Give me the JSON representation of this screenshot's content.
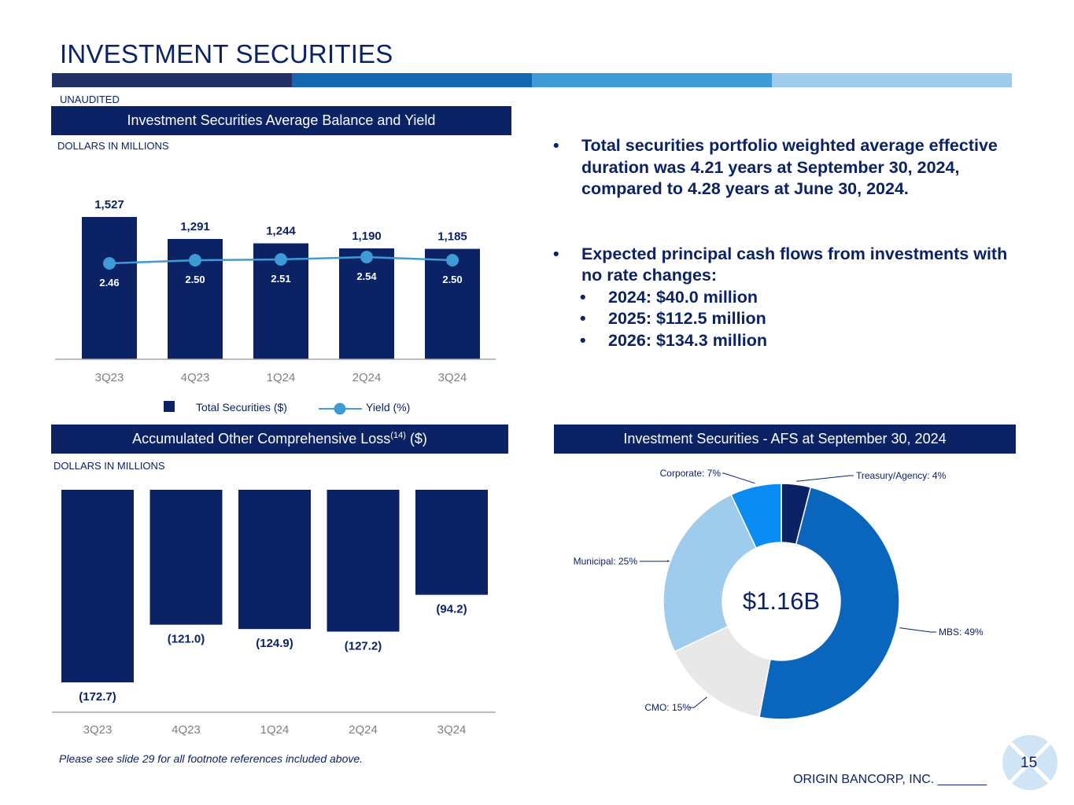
{
  "page": {
    "title": "INVESTMENT SECURITIES",
    "unaudited": "UNAUDITED",
    "footnote": "Please see slide 29 for all footnote references included above.",
    "company": "ORIGIN BANCORP, INC. _______",
    "page_number": "15"
  },
  "colors": {
    "navy": "#0b2265",
    "stripe": [
      "#233065",
      "#1266b2",
      "#3f9ad8",
      "#9fcbec"
    ],
    "line": "#3f9ad8"
  },
  "balance_panel": {
    "header": "Investment Securities Average Balance and Yield",
    "units": "DOLLARS IN MILLIONS",
    "legend_bar": "Total Securities ($)",
    "legend_line": "Yield (%)"
  },
  "aoci_panel": {
    "header": "Accumulated Other Comprehensive Loss",
    "header_sup": "(14)",
    "header_suffix": " ($)",
    "units": "DOLLARS IN MILLIONS"
  },
  "afs_panel": {
    "header": "Investment Securities - AFS at September 30, 2024",
    "center_label": "$1.16B"
  },
  "bullets": [
    {
      "text": "Total securities portfolio weighted average effective duration was 4.21 years at September 30, 2024, compared to 4.28 years at June 30, 2024.",
      "sub": []
    },
    {
      "text": "Expected principal cash flows from investments with no rate changes:",
      "sub": [
        "2024: $40.0 million",
        "2025: $112.5 million",
        "2026: $134.3 million"
      ]
    }
  ],
  "chart_data": [
    {
      "type": "bar",
      "title": "Investment Securities Average Balance and Yield",
      "categories": [
        "3Q23",
        "4Q23",
        "1Q24",
        "2Q24",
        "3Q24"
      ],
      "series": [
        {
          "name": "Total Securities ($)",
          "type": "bar",
          "values": [
            1527,
            1291,
            1244,
            1190,
            1185
          ],
          "labels": [
            "1,527",
            "1,291",
            "1,244",
            "1,190",
            "1,185"
          ]
        },
        {
          "name": "Yield (%)",
          "type": "line",
          "values": [
            2.46,
            2.5,
            2.51,
            2.54,
            2.5
          ],
          "labels": [
            "2.46",
            "2.50",
            "2.51",
            "2.54",
            "2.50"
          ]
        }
      ],
      "ylabel": "DOLLARS IN MILLIONS",
      "ylim": [
        0,
        1527
      ]
    },
    {
      "type": "bar",
      "title": "Accumulated Other Comprehensive Loss ($)",
      "categories": [
        "3Q23",
        "4Q23",
        "1Q24",
        "2Q24",
        "3Q24"
      ],
      "values": [
        -172.7,
        -121.0,
        -124.9,
        -127.2,
        -94.2
      ],
      "labels": [
        "(172.7)",
        "(121.0)",
        "(124.9)",
        "(127.2)",
        "(94.2)"
      ],
      "ylabel": "DOLLARS IN MILLIONS",
      "ylim": [
        -172.7,
        0
      ]
    },
    {
      "type": "pie",
      "title": "Investment Securities - AFS at September 30, 2024",
      "center_label": "$1.16B",
      "slices": [
        {
          "name": "Treasury/Agency",
          "value": 4,
          "label": "Treasury/Agency: 4%",
          "color": "#0b2265"
        },
        {
          "name": "MBS",
          "value": 49,
          "label": "MBS: 49%",
          "color": "#0a66bd"
        },
        {
          "name": "CMO",
          "value": 15,
          "label": "CMO: 15%",
          "color": "#e8e8e8"
        },
        {
          "name": "Municipal",
          "value": 25,
          "label": "Municipal: 25%",
          "color": "#9fcbec"
        },
        {
          "name": "Corporate",
          "value": 7,
          "label": "Corporate: 7%",
          "color": "#0a8cf5"
        }
      ]
    }
  ]
}
